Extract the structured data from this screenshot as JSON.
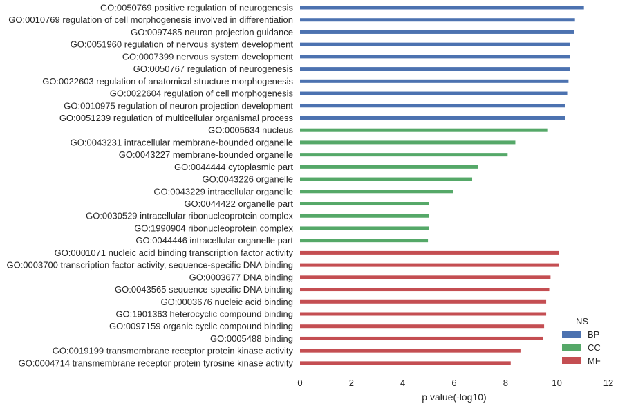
{
  "chart_data": {
    "type": "bar",
    "orientation": "horizontal",
    "xlabel": "p value(-log10)",
    "ylabel": "",
    "xlim": [
      0,
      12
    ],
    "xticks": [
      0,
      2,
      4,
      6,
      8,
      10,
      12
    ],
    "grid": false,
    "legend": {
      "title": "NS",
      "placement": "bottom-right",
      "entries": [
        {
          "name": "BP",
          "color": "#4c72b0"
        },
        {
          "name": "CC",
          "color": "#55a868"
        },
        {
          "name": "MF",
          "color": "#c44e52"
        }
      ]
    },
    "bars": [
      {
        "label": "GO:0050769 positive regulation of neurogenesis",
        "value": 11.05,
        "group": "BP"
      },
      {
        "label": "GO:0010769 regulation of cell morphogenesis involved in differentiation",
        "value": 10.7,
        "group": "BP"
      },
      {
        "label": "GO:0097485 neuron projection guidance",
        "value": 10.68,
        "group": "BP"
      },
      {
        "label": "GO:0051960 regulation of nervous system development",
        "value": 10.52,
        "group": "BP"
      },
      {
        "label": "GO:0007399 nervous system development",
        "value": 10.5,
        "group": "BP"
      },
      {
        "label": "GO:0050767 regulation of neurogenesis",
        "value": 10.5,
        "group": "BP"
      },
      {
        "label": "GO:0022603 regulation of anatomical structure morphogenesis",
        "value": 10.45,
        "group": "BP"
      },
      {
        "label": "GO:0022604 regulation of cell morphogenesis",
        "value": 10.4,
        "group": "BP"
      },
      {
        "label": "GO:0010975 regulation of neuron projection development",
        "value": 10.33,
        "group": "BP"
      },
      {
        "label": "GO:0051239 regulation of multicellular organismal process",
        "value": 10.33,
        "group": "BP"
      },
      {
        "label": "GO:0005634 nucleus",
        "value": 9.65,
        "group": "CC"
      },
      {
        "label": "GO:0043231 intracellular membrane-bounded organelle",
        "value": 8.38,
        "group": "CC"
      },
      {
        "label": "GO:0043227 membrane-bounded organelle",
        "value": 8.08,
        "group": "CC"
      },
      {
        "label": "GO:0044444 cytoplasmic part",
        "value": 6.92,
        "group": "CC"
      },
      {
        "label": "GO:0043226 organelle",
        "value": 6.7,
        "group": "CC"
      },
      {
        "label": "GO:0043229 intracellular organelle",
        "value": 5.97,
        "group": "CC"
      },
      {
        "label": "GO:0044422 organelle part",
        "value": 5.03,
        "group": "CC"
      },
      {
        "label": "GO:0030529 intracellular ribonucleoprotein complex",
        "value": 5.03,
        "group": "CC"
      },
      {
        "label": "GO:1990904 ribonucleoprotein complex",
        "value": 5.03,
        "group": "CC"
      },
      {
        "label": "GO:0044446 intracellular organelle part",
        "value": 4.98,
        "group": "CC"
      },
      {
        "label": "GO:0001071 nucleic acid binding transcription factor activity",
        "value": 10.08,
        "group": "MF"
      },
      {
        "label": "GO:0003700 transcription factor activity, sequence-specific DNA binding",
        "value": 10.08,
        "group": "MF"
      },
      {
        "label": "GO:0003677 DNA binding",
        "value": 9.75,
        "group": "MF"
      },
      {
        "label": "GO:0043565 sequence-specific DNA binding",
        "value": 9.7,
        "group": "MF"
      },
      {
        "label": "GO:0003676 nucleic acid binding",
        "value": 9.58,
        "group": "MF"
      },
      {
        "label": "GO:1901363 heterocyclic compound binding",
        "value": 9.58,
        "group": "MF"
      },
      {
        "label": "GO:0097159 organic cyclic compound binding",
        "value": 9.5,
        "group": "MF"
      },
      {
        "label": "GO:0005488 binding",
        "value": 9.47,
        "group": "MF"
      },
      {
        "label": "GO:0019199 transmembrane receptor protein kinase activity",
        "value": 8.58,
        "group": "MF"
      },
      {
        "label": "GO:0004714 transmembrane receptor protein tyrosine kinase activity",
        "value": 8.2,
        "group": "MF"
      }
    ]
  }
}
